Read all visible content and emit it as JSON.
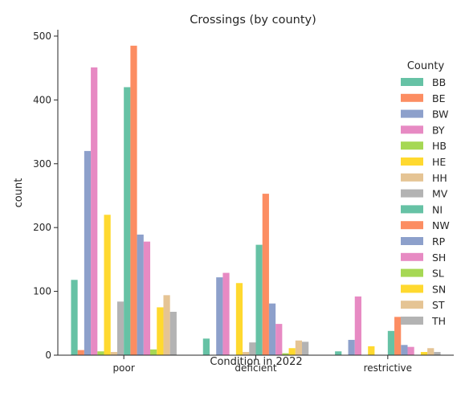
{
  "chart_data": {
    "type": "bar",
    "title": "Crossings (by county)",
    "xlabel": "Condition in 2022",
    "ylabel": "count",
    "ylim": [
      0,
      510
    ],
    "yticks": [
      0,
      100,
      200,
      300,
      400,
      500
    ],
    "categories": [
      "poor",
      "deficient",
      "restrictive"
    ],
    "legend": {
      "title": "County",
      "placement": "right"
    },
    "series": [
      {
        "name": "BB",
        "color": "#66c2a5",
        "values": [
          118,
          26,
          6
        ]
      },
      {
        "name": "BE",
        "color": "#fc8d62",
        "values": [
          8,
          0,
          0
        ]
      },
      {
        "name": "BW",
        "color": "#8da0cb",
        "values": [
          320,
          122,
          24
        ]
      },
      {
        "name": "BY",
        "color": "#e78ac3",
        "values": [
          451,
          129,
          92
        ]
      },
      {
        "name": "HB",
        "color": "#a6d854",
        "values": [
          6,
          0,
          0
        ]
      },
      {
        "name": "HE",
        "color": "#ffd92f",
        "values": [
          220,
          113,
          14
        ]
      },
      {
        "name": "HH",
        "color": "#e5c494",
        "values": [
          5,
          5,
          0
        ]
      },
      {
        "name": "MV",
        "color": "#b3b3b3",
        "values": [
          84,
          20,
          0
        ]
      },
      {
        "name": "NI",
        "color": "#66c2a5",
        "values": [
          420,
          173,
          38
        ]
      },
      {
        "name": "NW",
        "color": "#fc8d62",
        "values": [
          485,
          253,
          60
        ]
      },
      {
        "name": "RP",
        "color": "#8da0cb",
        "values": [
          189,
          81,
          16
        ]
      },
      {
        "name": "SH",
        "color": "#e78ac3",
        "values": [
          178,
          49,
          13
        ]
      },
      {
        "name": "SL",
        "color": "#a6d854",
        "values": [
          9,
          3,
          0
        ]
      },
      {
        "name": "SN",
        "color": "#ffd92f",
        "values": [
          75,
          11,
          5
        ]
      },
      {
        "name": "ST",
        "color": "#e5c494",
        "values": [
          94,
          23,
          11
        ]
      },
      {
        "name": "TH",
        "color": "#b3b3b3",
        "values": [
          68,
          21,
          5
        ]
      }
    ]
  }
}
